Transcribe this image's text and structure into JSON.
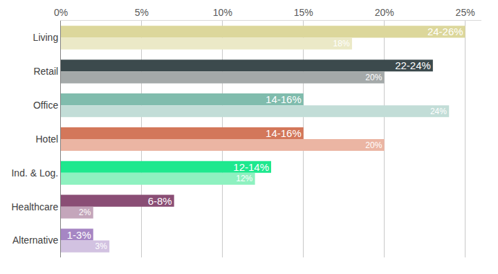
{
  "chart_data": {
    "type": "bar",
    "orientation": "horizontal",
    "grid": true,
    "data_labels": true,
    "categories": [
      "Living",
      "Retail",
      "Office",
      "Hotel",
      "Ind. & Log.",
      "Healthcare",
      "Alternative"
    ],
    "series": [
      {
        "colors": [
          "#dcd79b",
          "#3c4a4d",
          "#80bcad",
          "#d3775a",
          "#1ee88e",
          "#8a4e75",
          "#a686c4"
        ],
        "values": [
          25,
          23,
          15,
          15,
          13,
          7,
          2
        ],
        "value_labels": [
          "24-26%",
          "22-24%",
          "14-16%",
          "14-16%",
          "12-14%",
          "6-8%",
          "1-3%"
        ]
      },
      {
        "colors": [
          "#ebe9c7",
          "#a4a9a9",
          "#c2ddd7",
          "#ebb5a3",
          "#8ef1c0",
          "#c4a6bb",
          "#d2c2e1"
        ],
        "values": [
          18,
          20,
          24,
          20,
          12,
          2,
          3
        ],
        "value_labels": [
          "18%",
          "20%",
          "24%",
          "20%",
          "12%",
          "2%",
          "3%"
        ]
      }
    ],
    "xlim": [
      0,
      26
    ],
    "xticks": [
      {
        "value": 0,
        "label": "0%"
      },
      {
        "value": 5,
        "label": "5%"
      },
      {
        "value": 10,
        "label": "10%"
      },
      {
        "value": 15,
        "label": "15%"
      },
      {
        "value": 20,
        "label": "20%"
      },
      {
        "value": 25,
        "label": "25%"
      }
    ]
  }
}
